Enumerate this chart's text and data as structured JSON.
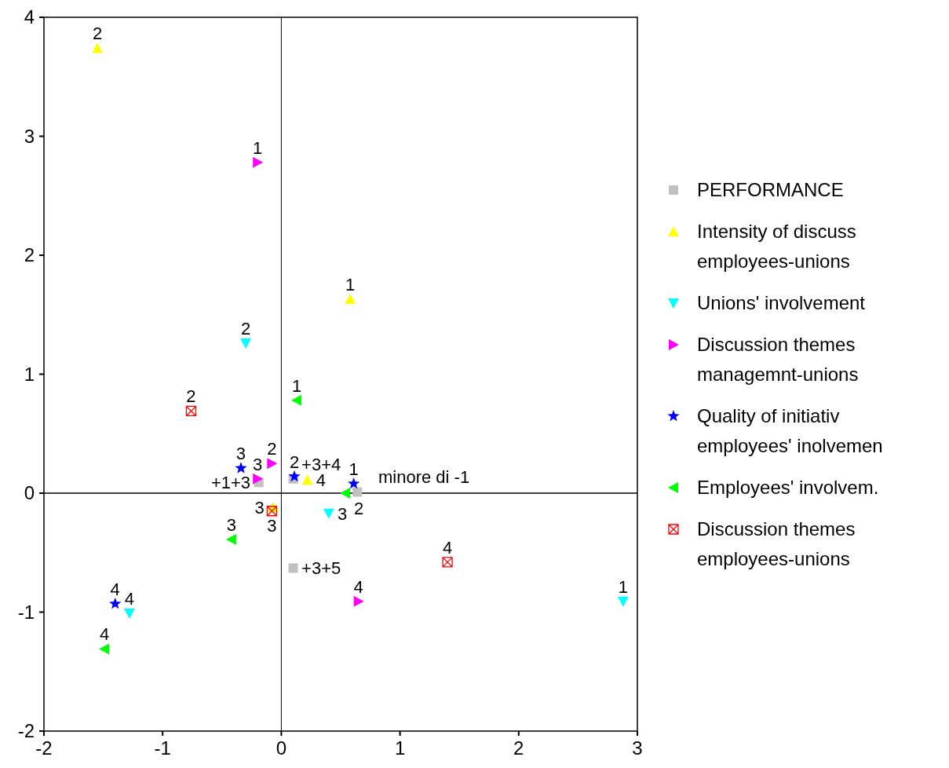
{
  "chart_data": {
    "type": "scatter",
    "xlim": [
      -2,
      3
    ],
    "ylim": [
      -2,
      4
    ],
    "xticks": [
      -2,
      -1,
      0,
      1,
      2,
      3
    ],
    "yticks": [
      -2,
      -1,
      0,
      1,
      2,
      3,
      4
    ],
    "grid": false,
    "legend": "right",
    "series": [
      {
        "name": "PERFORMANCE",
        "color": "#c0c0c0",
        "marker": "square",
        "x": [
          -0.19,
          0.1,
          0.64,
          0.1
        ],
        "values": [
          0.09,
          0.12,
          0.01,
          -0.63
        ]
      },
      {
        "name": "Intensity of discuss employees-unions",
        "color": "#ffff00",
        "marker": "triangle",
        "x": [
          0.58,
          -1.55,
          -0.07,
          0.22
        ],
        "values": [
          1.63,
          3.74,
          -0.12,
          0.11
        ]
      },
      {
        "name": "Unions' involvement",
        "color": "#00ffff",
        "marker": "triangle-down",
        "x": [
          2.88,
          -0.3,
          0.4,
          -1.28
        ],
        "values": [
          -0.91,
          1.26,
          -0.17,
          -1.01
        ]
      },
      {
        "name": "Discussion themes managemnt-unions",
        "color": "#ff00ff",
        "marker": "triangle-right",
        "x": [
          -0.2,
          -0.08,
          -0.2,
          0.65
        ],
        "values": [
          2.78,
          0.25,
          0.12,
          -0.91
        ]
      },
      {
        "name": "Quality of initiativ employees' inolvemen",
        "color": "#0000ff",
        "marker": "star",
        "x": [
          0.61,
          0.11,
          -0.34,
          -1.4
        ],
        "values": [
          0.08,
          0.14,
          0.21,
          -0.93
        ]
      },
      {
        "name": "Employees' involvem.",
        "color": "#00ff00",
        "marker": "triangle-left",
        "x": [
          0.13,
          0.54,
          -0.42,
          -1.49
        ],
        "values": [
          0.78,
          0,
          -0.39,
          -1.31
        ]
      },
      {
        "name": "Discussion themes employees-unions",
        "color": "#ff0000",
        "marker": "cross",
        "x": [
          -0.76,
          -0.08,
          1.4
        ],
        "values": [
          0.69,
          -0.15,
          -0.58
        ]
      }
    ],
    "annotations": [
      {
        "text": "+1+3",
        "x": -0.19,
        "y": 0.09
      },
      {
        "text": "+3+4",
        "x": 0.1,
        "y": 0.12
      },
      {
        "text": "minore di -1",
        "x": 0.64,
        "y": 0.01
      },
      {
        "text": "+3+5",
        "x": 0.1,
        "y": -0.63
      },
      {
        "text": "1",
        "x": 0.58,
        "y": 1.63
      },
      {
        "text": "2",
        "x": -1.55,
        "y": 3.74
      },
      {
        "text": "3",
        "x": -0.07,
        "y": -0.12
      },
      {
        "text": "4",
        "x": 0.22,
        "y": 0.11
      },
      {
        "text": "1",
        "x": 2.88,
        "y": -0.91
      },
      {
        "text": "2",
        "x": -0.3,
        "y": 1.26
      },
      {
        "text": "3",
        "x": 0.4,
        "y": -0.17
      },
      {
        "text": "4",
        "x": -1.28,
        "y": -1.01
      },
      {
        "text": "1",
        "x": -0.2,
        "y": 2.78
      },
      {
        "text": "2",
        "x": -0.08,
        "y": 0.25
      },
      {
        "text": "3",
        "x": -0.2,
        "y": 0.12
      },
      {
        "text": "4",
        "x": 0.65,
        "y": -0.91
      },
      {
        "text": "1",
        "x": 0.61,
        "y": 0.08
      },
      {
        "text": "2",
        "x": 0.11,
        "y": 0.14
      },
      {
        "text": "3",
        "x": -0.34,
        "y": 0.21
      },
      {
        "text": "4",
        "x": -1.4,
        "y": -0.93
      },
      {
        "text": "1",
        "x": 0.13,
        "y": 0.78
      },
      {
        "text": "2",
        "x": 0.54,
        "y": 0
      },
      {
        "text": "3",
        "x": -0.42,
        "y": -0.39
      },
      {
        "text": "4",
        "x": -1.49,
        "y": -1.31
      },
      {
        "text": "2",
        "x": -0.76,
        "y": 0.69
      },
      {
        "text": "3",
        "x": -0.08,
        "y": -0.15
      },
      {
        "text": "4",
        "x": 1.4,
        "y": -0.58
      }
    ]
  }
}
